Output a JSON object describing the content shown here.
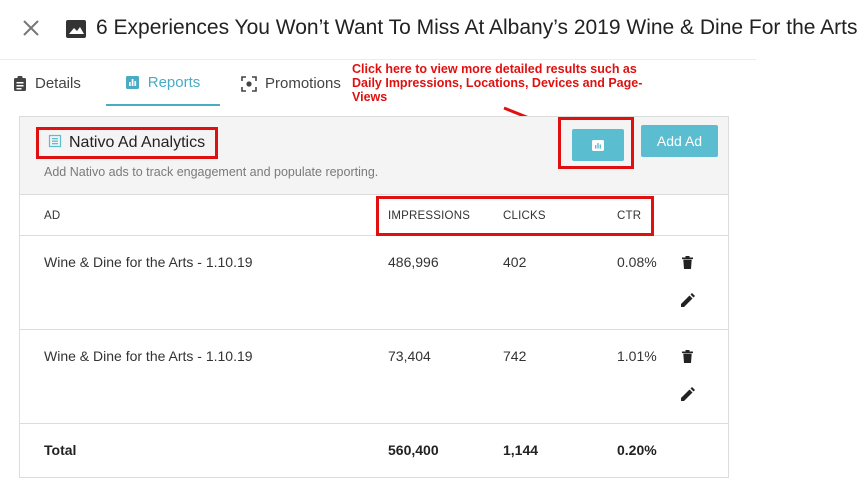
{
  "header": {
    "title": "6 Experiences You Won’t Want To Miss At Albany’s 2019 Wine & Dine For the Arts"
  },
  "tabs": [
    {
      "label": "Details",
      "icon": "clipboard-icon"
    },
    {
      "label": "Reports",
      "icon": "bar-chart-icon",
      "active": true
    },
    {
      "label": "Promotions",
      "icon": "promotions-icon"
    }
  ],
  "annotation": "Click here to view more detailed results such as Daily Impressions, Locations, Devices and Page-Views",
  "section": {
    "title": "Nativo Ad Analytics",
    "subtitle": "Add Nativo ads to track engagement and populate reporting.",
    "add_button": "Add Ad"
  },
  "table": {
    "headers": {
      "ad": "AD",
      "impressions": "IMPRESSIONS",
      "clicks": "CLICKS",
      "ctr": "CTR"
    },
    "rows": [
      {
        "ad": "Wine & Dine for the Arts - 1.10.19",
        "impressions": "486,996",
        "clicks": "402",
        "ctr": "0.08%"
      },
      {
        "ad": "Wine & Dine for the Arts - 1.10.19",
        "impressions": "73,404",
        "clicks": "742",
        "ctr": "1.01%"
      }
    ],
    "total": {
      "label": "Total",
      "impressions": "560,400",
      "clicks": "1,144",
      "ctr": "0.20%"
    }
  },
  "colors": {
    "accent": "#5bbdd0",
    "annotation": "#e01010"
  }
}
